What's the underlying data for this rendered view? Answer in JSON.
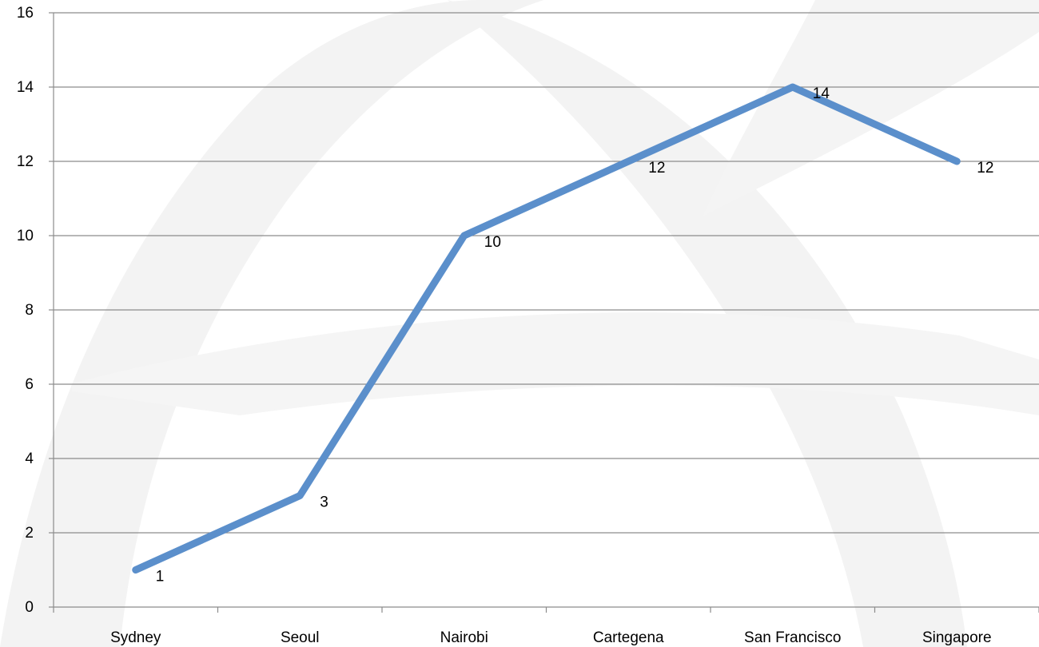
{
  "chart_data": {
    "type": "line",
    "categories": [
      "Sydney",
      "Seoul",
      "Nairobi",
      "Cartegena",
      "San Francisco",
      "Singapore"
    ],
    "series": [
      {
        "values": [
          1,
          3,
          10,
          12,
          14,
          12
        ],
        "color": "#5B8FCB"
      }
    ],
    "data_labels": [
      "1",
      "3",
      "10",
      "12",
      "14",
      "12"
    ],
    "title": "",
    "xlabel": "",
    "ylabel": "",
    "ylim": [
      0,
      16
    ],
    "yticks": [
      0,
      2,
      4,
      6,
      8,
      10,
      12,
      14,
      16
    ],
    "ytick_labels": [
      "0",
      "2",
      "4",
      "6",
      "8",
      "10",
      "12",
      "14",
      "16"
    ],
    "grid": true,
    "legend": "none",
    "gridline_color": "#8C8C8C",
    "watermark_color": "#F2F2F2"
  }
}
